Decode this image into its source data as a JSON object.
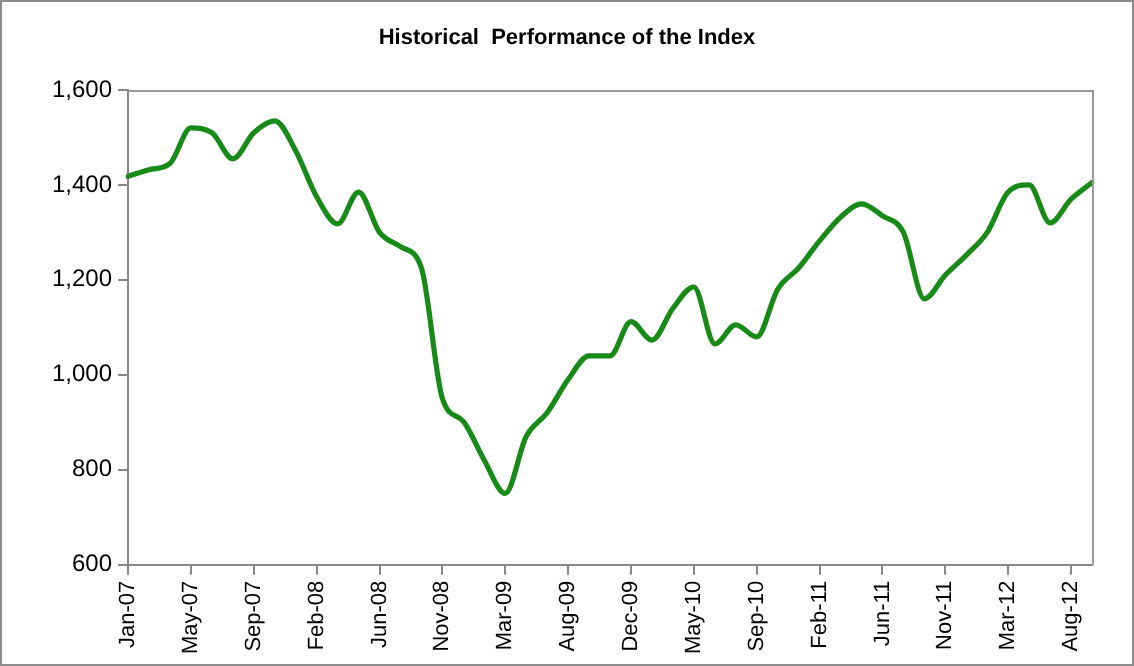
{
  "chart_data": {
    "type": "line",
    "title": "Historical  Performance of the Index",
    "categories": [
      "Jan-07",
      null,
      null,
      "May-07",
      null,
      null,
      "Sep-07",
      null,
      null,
      "Feb-08",
      null,
      null,
      "Jun-08",
      null,
      null,
      "Nov-08",
      null,
      null,
      "Mar-09",
      null,
      null,
      "Aug-09",
      null,
      null,
      "Dec-09",
      null,
      null,
      "May-10",
      null,
      null,
      "Sep-10",
      null,
      null,
      "Feb-11",
      null,
      null,
      "Jun-11",
      null,
      null,
      "Nov-11",
      null,
      null,
      "Mar-12",
      null,
      null,
      "Aug-12",
      null
    ],
    "series": [
      {
        "color": "#188a18",
        "values": [
          1418,
          1432,
          1445,
          1520,
          1510,
          1455,
          1510,
          1535,
          1472,
          1375,
          1318,
          1385,
          1300,
          1270,
          1225,
          950,
          902,
          820,
          750,
          870,
          920,
          990,
          1040,
          1040,
          1112,
          1073,
          1140,
          1185,
          1065,
          1105,
          1080,
          1180,
          1225,
          1282,
          1332,
          1360,
          1335,
          1300,
          1160,
          1210,
          1252,
          1300,
          1385,
          1400,
          1320,
          1370,
          1405
        ]
      }
    ],
    "ylim": [
      600,
      1600
    ],
    "yticks": [
      {
        "value": 600,
        "label": "600"
      },
      {
        "value": 800,
        "label": "800"
      },
      {
        "value": 1000,
        "label": "1,000"
      },
      {
        "value": 1200,
        "label": "1,200"
      },
      {
        "value": 1400,
        "label": "1,400"
      },
      {
        "value": 1600,
        "label": "1,600"
      }
    ],
    "grid": false,
    "legend": false,
    "marker": "none",
    "line_style": "solid"
  }
}
